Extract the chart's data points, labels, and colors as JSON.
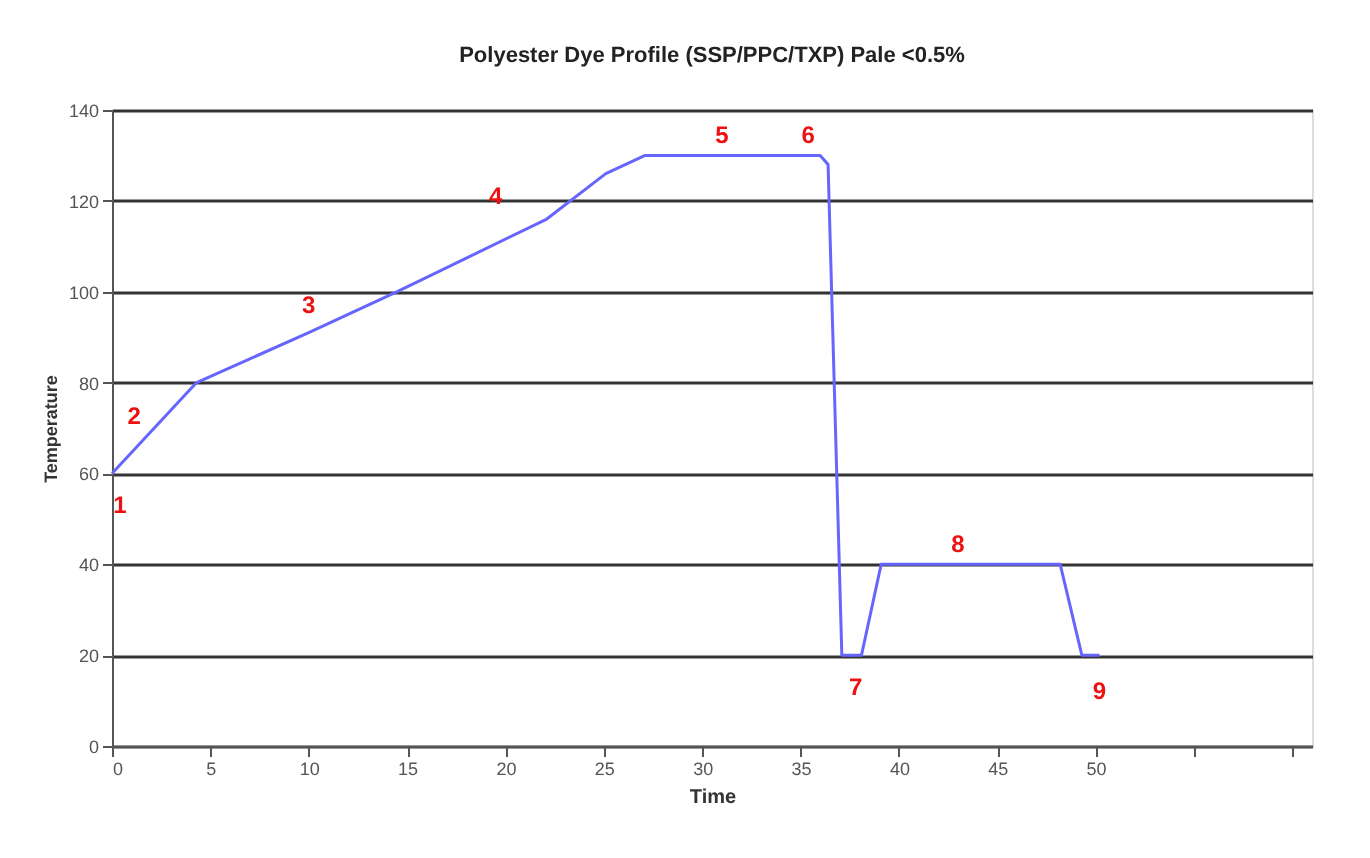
{
  "chart_data": {
    "type": "line",
    "title": "Polyester Dye Profile  (SSP/PPC/TXP) Pale <0.5%",
    "xlabel": "Time",
    "ylabel": "Temperature",
    "x": [
      0,
      4.3,
      10,
      14.5,
      22.1,
      25.1,
      27.1,
      36.0,
      36.4,
      37.1,
      38.1,
      39.1,
      48.2,
      49.3,
      50.2
    ],
    "series": [
      {
        "color": "#6666ff",
        "values": [
          60,
          80,
          91,
          100,
          116,
          126,
          130,
          130,
          128,
          20,
          20,
          40,
          40,
          20,
          20
        ]
      }
    ],
    "xlim": [
      0,
      61
    ],
    "xticks": [
      0,
      5,
      10,
      15,
      20,
      25,
      30,
      35,
      40,
      45,
      50,
      {
        "value": 55,
        "label": null
      },
      {
        "value": 60,
        "label": null
      }
    ],
    "ylim": [
      0,
      140
    ],
    "yticks": [
      0,
      20,
      40,
      60,
      80,
      100,
      120,
      140
    ],
    "grid": "y",
    "marker": "none",
    "line_style": "solid",
    "annotations": [
      {
        "text": "1",
        "x": 0,
        "y": 60
      },
      {
        "text": "2",
        "x": 2.15,
        "y": 70
      },
      {
        "text": "3",
        "x": 10,
        "y": 91
      },
      {
        "text": "4",
        "x": 19.5,
        "y": 110.5
      },
      {
        "text": "5",
        "x": 31,
        "y": 130
      },
      {
        "text": "6",
        "x": 36,
        "y": 130
      },
      {
        "text": "7",
        "x": 37.6,
        "y": 20
      },
      {
        "text": "8",
        "x": 43,
        "y": 40
      },
      {
        "text": "9",
        "x": 50.2,
        "y": 20
      }
    ]
  }
}
